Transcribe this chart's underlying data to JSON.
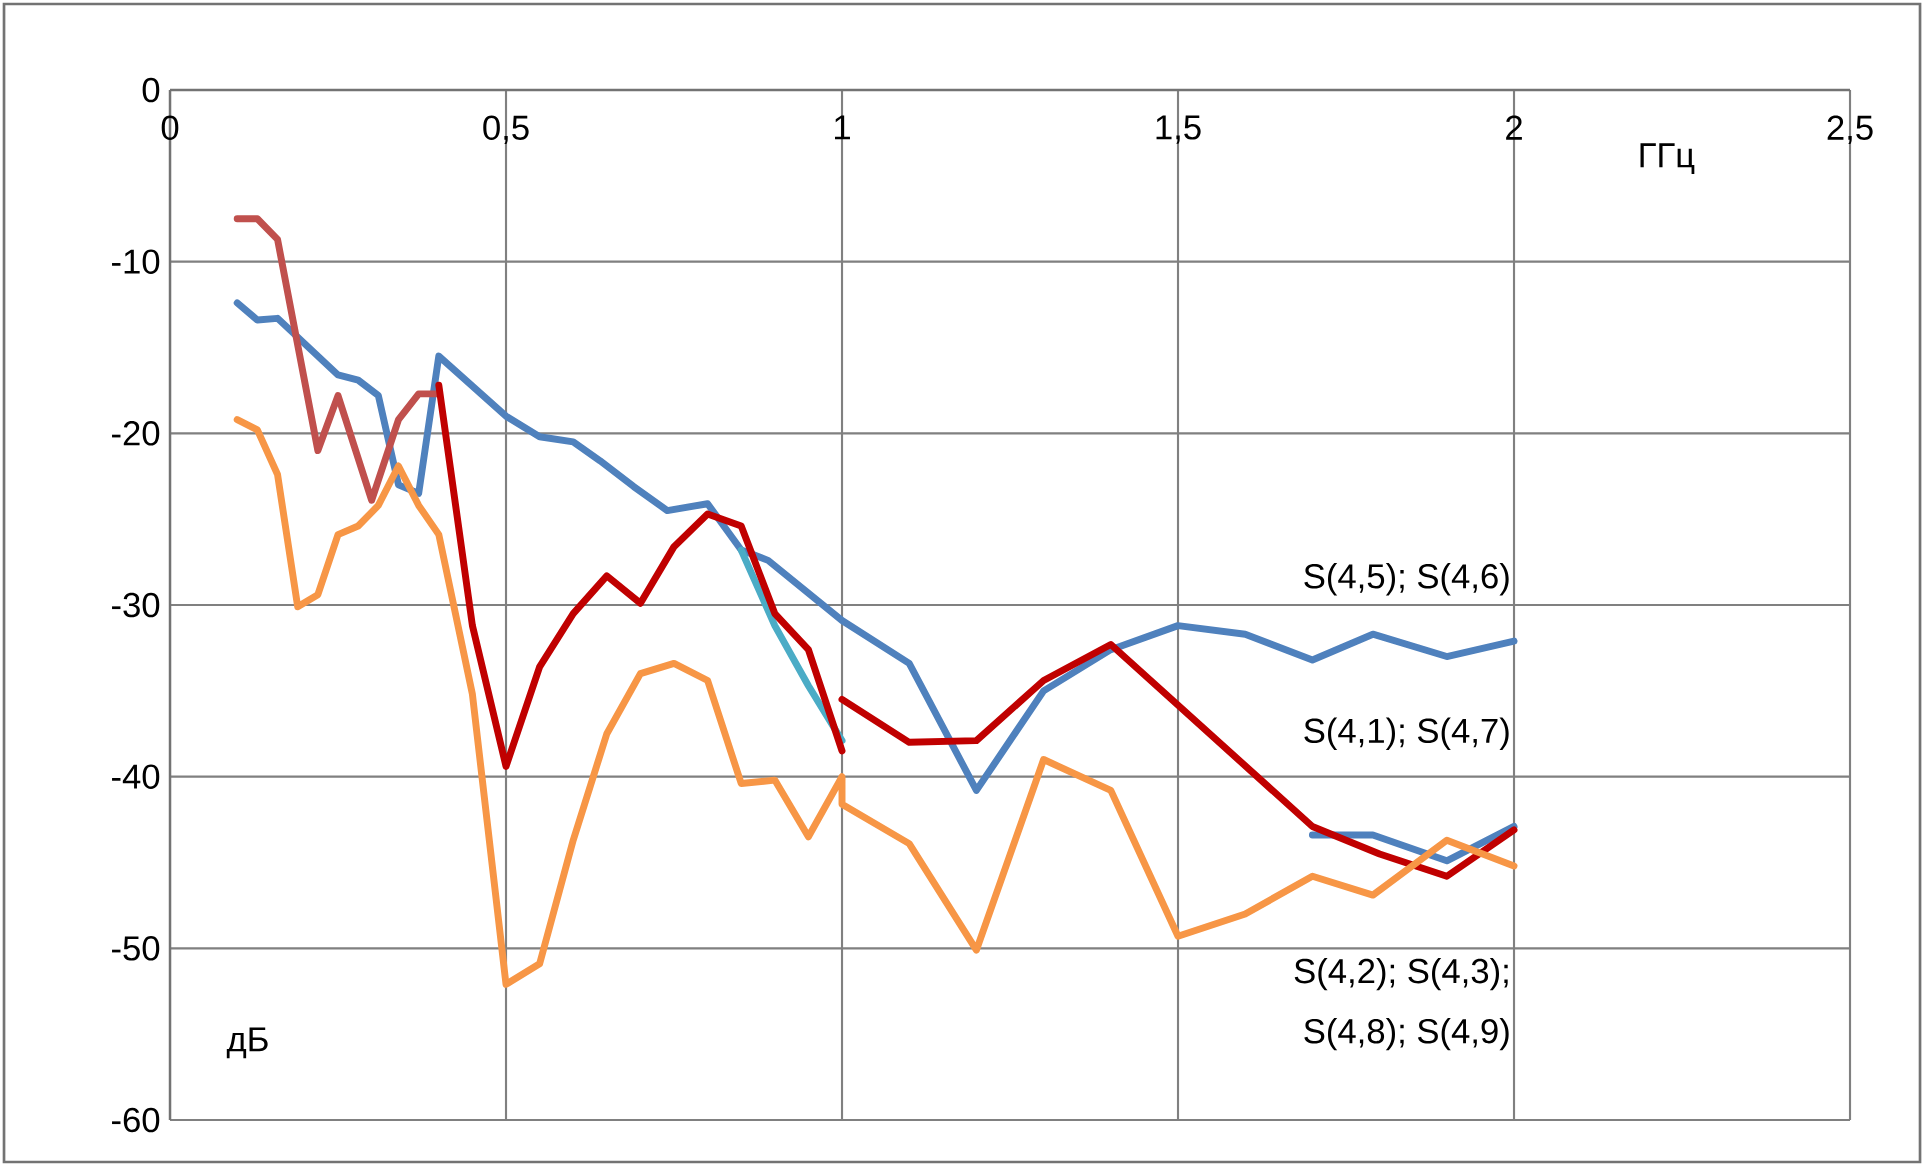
{
  "chart_data": {
    "type": "line",
    "xlabel": "ГГц",
    "ylabel": "дБ",
    "xlim": [
      0,
      2.5
    ],
    "ylim": [
      -60,
      0
    ],
    "xticks": [
      0,
      {
        "value": 0.5,
        "label": "0,5"
      },
      1,
      {
        "value": 1.5,
        "label": "1,5"
      },
      2,
      {
        "value": 2.5,
        "label": "2,5"
      }
    ],
    "yticks": [
      -60,
      -50,
      -40,
      -30,
      -20,
      -10,
      0
    ],
    "grid": true,
    "series": [
      {
        "color": "#4f81bd",
        "x": [
          0.1,
          0.13,
          0.16,
          0.25,
          0.28,
          0.31,
          0.34,
          0.37,
          0.4,
          0.5,
          0.55,
          0.6,
          0.64,
          0.69,
          0.74,
          0.8,
          0.85,
          0.89,
          1.0,
          1.1,
          1.2,
          1.3,
          1.4,
          1.5,
          1.6,
          1.7,
          1.79,
          1.9,
          2.0
        ],
        "values": [
          -12.4,
          -13.4,
          -13.3,
          -16.6,
          -16.9,
          -17.8,
          -23.0,
          -23.5,
          -15.5,
          -19.0,
          -20.2,
          -20.5,
          -21.6,
          -23.1,
          -24.5,
          -24.1,
          -26.8,
          -27.4,
          -30.9,
          -33.4,
          -40.8,
          -35.0,
          -32.6,
          -31.2,
          -31.7,
          -33.2,
          -31.7,
          -33.0,
          -32.1
        ]
      },
      {
        "color": "#4bacc6",
        "x": [
          0.85,
          0.9,
          0.95,
          1.0
        ],
        "values": [
          -26.8,
          -31.2,
          -34.7,
          -37.9
        ]
      },
      {
        "color": "#c0504d",
        "x": [
          0.1,
          0.13,
          0.16,
          0.22,
          0.25,
          0.3,
          0.34,
          0.37,
          0.4
        ],
        "values": [
          -7.5,
          -7.5,
          -8.7,
          -21.0,
          -17.8,
          -23.9,
          -19.2,
          -17.7,
          -17.7
        ]
      },
      {
        "color": "#4f81bd",
        "x": [
          1.7,
          1.79,
          1.9,
          2.0
        ],
        "values": [
          -43.4,
          -43.4,
          -44.9,
          -42.9
        ]
      },
      {
        "color": "#c00000",
        "x": [
          0.4,
          0.45,
          0.5,
          0.55,
          0.6,
          0.65,
          0.7,
          0.75,
          0.8,
          0.85,
          0.9,
          0.95,
          1.0
        ],
        "values": [
          -17.2,
          -31.2,
          -39.4,
          -33.6,
          -30.5,
          -28.3,
          -29.9,
          -26.6,
          -24.7,
          -25.4,
          -30.5,
          -32.6,
          -38.5
        ]
      },
      {
        "color": "#c00000",
        "x": [
          1.0,
          1.1,
          1.2,
          1.3,
          1.4,
          1.7,
          1.8,
          1.9,
          2.0
        ],
        "values": [
          -35.5,
          -38.0,
          -37.9,
          -34.4,
          -32.3,
          -42.9,
          -44.5,
          -45.8,
          -43.1
        ]
      },
      {
        "color": "#f79646",
        "x": [
          0.1,
          0.13,
          0.16,
          0.19,
          0.22,
          0.25,
          0.28,
          0.31,
          0.34,
          0.37,
          0.4,
          0.45,
          0.5,
          0.55,
          0.6,
          0.65,
          0.7,
          0.75,
          0.8,
          0.85,
          0.9,
          0.95,
          1.0,
          1.0,
          1.1,
          1.2,
          1.3,
          1.4,
          1.5,
          1.6,
          1.7,
          1.79,
          1.9,
          2.0
        ],
        "values": [
          -19.2,
          -19.8,
          -22.4,
          -30.1,
          -29.4,
          -25.9,
          -25.4,
          -24.2,
          -21.9,
          -24.2,
          -25.9,
          -35.2,
          -52.1,
          -50.9,
          -43.7,
          -37.5,
          -34.0,
          -33.4,
          -34.4,
          -40.4,
          -40.2,
          -43.5,
          -40.0,
          -41.6,
          -43.9,
          -50.1,
          -39.0,
          -40.8,
          -49.3,
          -48.0,
          -45.8,
          -46.9,
          -43.7,
          -45.2
        ]
      }
    ],
    "annotations": [
      "S(4,5); S(4,6)",
      "S(4,1); S(4,7)",
      "S(4,2); S(4,3);",
      "S(4,8); S(4,9)"
    ]
  }
}
